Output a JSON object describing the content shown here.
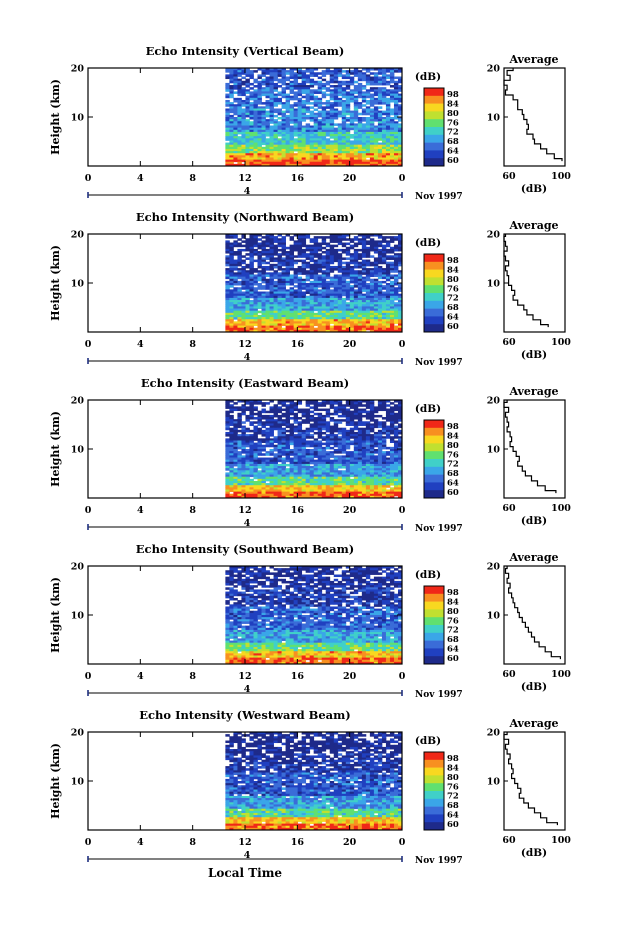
{
  "chart_data": [
    {
      "type": "heatmap",
      "title": "Echo Intensity (Vertical Beam)",
      "ylabel": "Height (km)",
      "yticks": [
        10,
        20
      ],
      "ylim": [
        0,
        20
      ],
      "xticks": [
        "0",
        "4",
        "8",
        "12",
        "16",
        "20",
        "0"
      ],
      "xlim": [
        0,
        24
      ],
      "date_label": "4",
      "month_label": "Nov 1997",
      "data_start_hour": 10.5,
      "colorbar": {
        "unit": "(dB)",
        "ticks": [
          "98",
          "84",
          "80",
          "76",
          "72",
          "68",
          "64",
          "60"
        ]
      },
      "profile": {
        "title": "Average",
        "xlabel": "(dB)",
        "xticks": [
          "60",
          "100"
        ],
        "yticks": [
          "10",
          "20"
        ],
        "xlim": [
          60,
          100
        ],
        "ylim": [
          0,
          20
        ],
        "height": [
          20,
          19,
          18,
          17,
          16,
          15,
          14,
          13,
          12,
          11,
          10,
          9,
          8,
          7,
          6,
          5,
          4,
          3,
          2,
          1
        ],
        "db": [
          66,
          62,
          64,
          60,
          62,
          61,
          66,
          69,
          69,
          72,
          73,
          75,
          76,
          75,
          79,
          80,
          84,
          88,
          93,
          98
        ]
      }
    },
    {
      "type": "heatmap",
      "title": "Echo Intensity (Northward Beam)",
      "ylabel": "Height (km)",
      "yticks": [
        10,
        20
      ],
      "ylim": [
        0,
        20
      ],
      "xticks": [
        "0",
        "4",
        "8",
        "12",
        "16",
        "20",
        "0"
      ],
      "xlim": [
        0,
        24
      ],
      "date_label": "4",
      "month_label": "Nov 1997",
      "data_start_hour": 10.5,
      "colorbar": {
        "unit": "(dB)",
        "ticks": [
          "98",
          "84",
          "80",
          "76",
          "72",
          "68",
          "64",
          "60"
        ]
      },
      "profile": {
        "title": "Average",
        "xlabel": "(dB)",
        "xticks": [
          "60",
          "100"
        ],
        "yticks": [
          "10",
          "20"
        ],
        "xlim": [
          60,
          100
        ],
        "ylim": [
          0,
          20
        ],
        "height": [
          20,
          19,
          18,
          17,
          16,
          15,
          14,
          13,
          12,
          11,
          10,
          9,
          8,
          7,
          6,
          5,
          4,
          3,
          2,
          1
        ],
        "db": [
          61,
          60,
          61,
          62,
          60,
          61,
          63,
          61,
          62,
          63,
          63,
          65,
          67,
          66,
          69,
          73,
          75,
          79,
          84,
          89
        ]
      }
    },
    {
      "type": "heatmap",
      "title": "Echo Intensity (Eastward Beam)",
      "ylabel": "Height (km)",
      "yticks": [
        10,
        20
      ],
      "ylim": [
        0,
        20
      ],
      "xticks": [
        "0",
        "4",
        "8",
        "12",
        "16",
        "20",
        "0"
      ],
      "xlim": [
        0,
        24
      ],
      "date_label": "4",
      "month_label": "Nov 1997",
      "data_start_hour": 10.5,
      "colorbar": {
        "unit": "(dB)",
        "ticks": [
          "98",
          "84",
          "80",
          "76",
          "72",
          "68",
          "64",
          "60"
        ]
      },
      "profile": {
        "title": "Average",
        "xlabel": "(dB)",
        "xticks": [
          "60",
          "100"
        ],
        "yticks": [
          "10",
          "20"
        ],
        "xlim": [
          60,
          100
        ],
        "ylim": [
          0,
          20
        ],
        "height": [
          20,
          19,
          18,
          17,
          16,
          15,
          14,
          13,
          12,
          11,
          10,
          9,
          8,
          7,
          6,
          5,
          4,
          3,
          2,
          1
        ],
        "db": [
          62,
          60,
          63,
          61,
          62,
          63,
          62,
          64,
          65,
          64,
          66,
          68,
          70,
          69,
          72,
          74,
          78,
          82,
          87,
          94
        ]
      }
    },
    {
      "type": "heatmap",
      "title": "Echo Intensity (Southward Beam)",
      "ylabel": "Height (km)",
      "yticks": [
        10,
        20
      ],
      "ylim": [
        0,
        20
      ],
      "xticks": [
        "0",
        "4",
        "8",
        "12",
        "16",
        "20",
        "0"
      ],
      "xlim": [
        0,
        24
      ],
      "date_label": "4",
      "month_label": "Nov 1997",
      "data_start_hour": 10.5,
      "colorbar": {
        "unit": "(dB)",
        "ticks": [
          "98",
          "84",
          "80",
          "76",
          "72",
          "68",
          "64",
          "60"
        ]
      },
      "profile": {
        "title": "Average",
        "xlabel": "(dB)",
        "xticks": [
          "60",
          "100"
        ],
        "yticks": [
          "10",
          "20"
        ],
        "xlim": [
          60,
          100
        ],
        "ylim": [
          0,
          20
        ],
        "height": [
          20,
          19,
          18,
          17,
          16,
          15,
          14,
          13,
          12,
          11,
          10,
          9,
          8,
          7,
          6,
          5,
          4,
          3,
          2,
          1
        ],
        "db": [
          62,
          61,
          63,
          62,
          64,
          63,
          65,
          66,
          67,
          69,
          70,
          72,
          74,
          76,
          78,
          80,
          83,
          87,
          91,
          97
        ]
      }
    },
    {
      "type": "heatmap",
      "title": "Echo Intensity (Westward Beam)",
      "ylabel": "Height (km)",
      "yticks": [
        10,
        20
      ],
      "ylim": [
        0,
        20
      ],
      "xticks": [
        "0",
        "4",
        "8",
        "12",
        "16",
        "20",
        "0"
      ],
      "xlim": [
        0,
        24
      ],
      "date_label": "4",
      "month_label": "Nov 1997",
      "data_start_hour": 10.5,
      "colorbar": {
        "unit": "(dB)",
        "ticks": [
          "98",
          "84",
          "80",
          "76",
          "72",
          "68",
          "64",
          "60"
        ]
      },
      "profile": {
        "title": "Average",
        "xlabel": "(dB)",
        "xticks": [
          "60",
          "100"
        ],
        "yticks": [
          "10",
          "20"
        ],
        "xlim": [
          60,
          100
        ],
        "ylim": [
          0,
          20
        ],
        "height": [
          20,
          19,
          18,
          17,
          16,
          15,
          14,
          13,
          12,
          11,
          10,
          9,
          8,
          7,
          6,
          5,
          4,
          3,
          2,
          1
        ],
        "db": [
          62,
          60,
          63,
          61,
          62,
          64,
          63,
          65,
          66,
          65,
          67,
          69,
          71,
          70,
          73,
          76,
          80,
          84,
          88,
          95
        ]
      }
    }
  ],
  "footer": {
    "xlabel": "Local Time"
  },
  "palette": [
    "#1e2a8a",
    "#2040c0",
    "#3a6cd8",
    "#3aa6e8",
    "#40d0c8",
    "#60e070",
    "#c0e030",
    "#f8d820",
    "#f89020",
    "#f02818"
  ]
}
